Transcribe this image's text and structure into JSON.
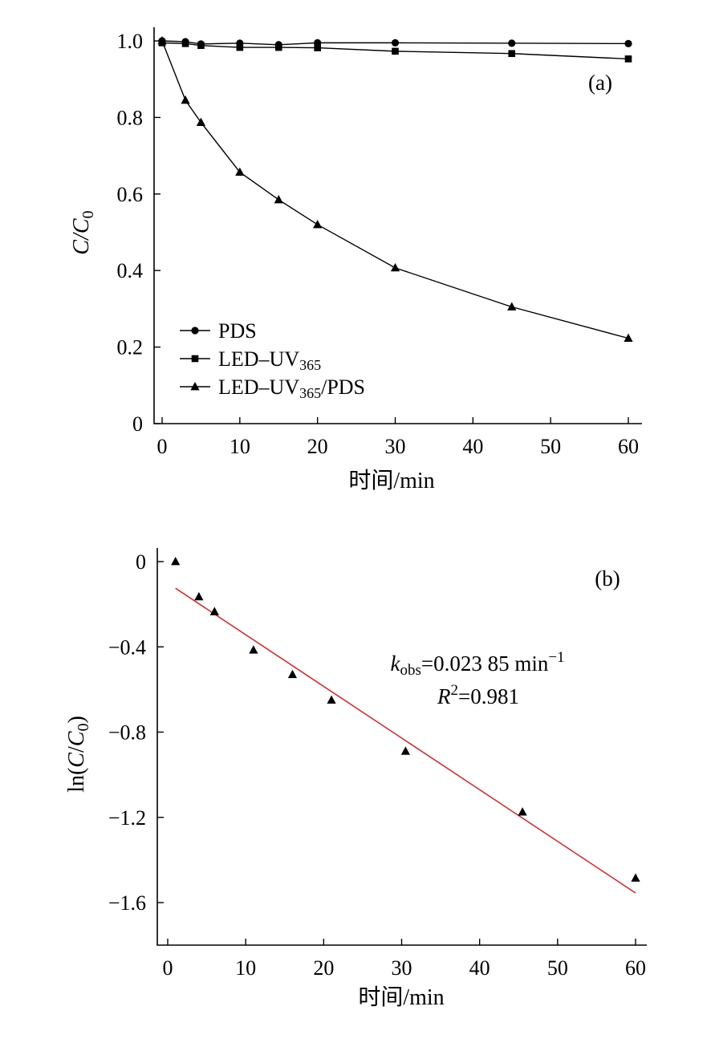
{
  "chart_data": [
    {
      "panel": "(a)",
      "type": "line",
      "xlabel": "时间/min",
      "ylabel": {
        "main": "C/C",
        "sub": "0"
      },
      "xlim": [
        -2,
        62
      ],
      "ylim": [
        0,
        1.0
      ],
      "xticks": [
        0,
        10,
        20,
        30,
        40,
        50,
        60
      ],
      "yticks": [
        0,
        0.2,
        0.4,
        0.6,
        0.8,
        1.0
      ],
      "ytick_labels": [
        "0",
        "0.2",
        "0.4",
        "0.6",
        "0.8",
        "1.0"
      ],
      "legend_position": "bottom-left",
      "grid": false,
      "series": [
        {
          "name": "PDS",
          "legend": {
            "main": "PDS",
            "sub": "",
            "tail": ""
          },
          "marker": "circle",
          "x": [
            0,
            3,
            5,
            10,
            15,
            20,
            30,
            45,
            60
          ],
          "y": [
            1.0,
            0.998,
            0.992,
            0.994,
            0.99,
            0.995,
            0.995,
            0.994,
            0.993
          ]
        },
        {
          "name": "LED–UV365",
          "legend": {
            "main": "LED–UV",
            "sub": "365",
            "tail": ""
          },
          "marker": "square",
          "x": [
            0,
            3,
            5,
            10,
            15,
            20,
            30,
            45,
            60
          ],
          "y": [
            0.995,
            0.993,
            0.988,
            0.983,
            0.983,
            0.982,
            0.973,
            0.967,
            0.953
          ]
        },
        {
          "name": "LED–UV365/PDS",
          "legend": {
            "main": "LED–UV",
            "sub": "365",
            "tail": "/PDS"
          },
          "marker": "triangle",
          "x": [
            0,
            3,
            5,
            10,
            15,
            20,
            30,
            45,
            60
          ],
          "y": [
            1.0,
            0.845,
            0.787,
            0.657,
            0.585,
            0.52,
            0.407,
            0.305,
            0.223
          ]
        }
      ]
    },
    {
      "panel": "(b)",
      "type": "scatter",
      "xlabel": "时间/min",
      "ylabel": {
        "pre": "ln(",
        "c": "C",
        "slash": "/",
        "c0": "C",
        "sub": "0",
        "post": ")"
      },
      "xlim": [
        -2,
        62
      ],
      "ylim": [
        -1.8,
        0
      ],
      "xticks": [
        0,
        10,
        20,
        30,
        40,
        50,
        60
      ],
      "yticks": [
        0,
        -0.4,
        -0.8,
        -1.2,
        -1.6
      ],
      "ytick_labels": [
        "0",
        "−0.4",
        "−0.8",
        "−1.2",
        "−1.6"
      ],
      "grid": false,
      "series": [
        {
          "marker": "triangle",
          "x": [
            1,
            4,
            6,
            11,
            16,
            21,
            30.5,
            45.5,
            60
          ],
          "y": [
            0.0,
            -0.165,
            -0.235,
            -0.415,
            -0.53,
            -0.65,
            -0.89,
            -1.175,
            -1.485
          ]
        }
      ],
      "fit": {
        "color": "#cc3333",
        "x": [
          1,
          60
        ],
        "y": [
          -0.125,
          -1.555
        ]
      },
      "annotation": {
        "k": "k",
        "k_sub": "obs",
        "k_value": "=0.023 85 min",
        "k_unit_sup": "−1",
        "r": "R",
        "r_sup": "2",
        "r_value": "=0.981"
      }
    }
  ]
}
